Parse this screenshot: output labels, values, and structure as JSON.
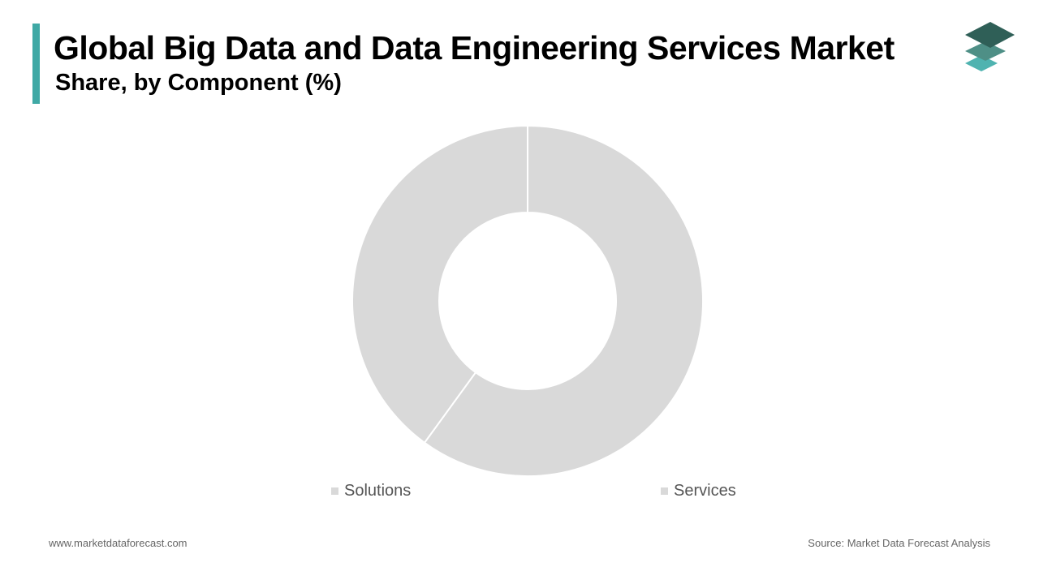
{
  "header": {
    "title": "Global Big Data and Data Engineering Services Market",
    "subtitle": "Share, by Component (%)"
  },
  "colors": {
    "accent": "#3fa9a5",
    "segment": "#d9d9d9",
    "segment_border": "#ffffff",
    "logo_dark": "#2f5f57",
    "logo_mid": "#4e8f86",
    "logo_light": "#4fb3b0"
  },
  "logo": {
    "icon": "stacked-layers-icon"
  },
  "chart_data": {
    "type": "pie",
    "variant": "donut",
    "categories": [
      "Solutions",
      "Services"
    ],
    "values": [
      40,
      60
    ],
    "colors": [
      "#d9d9d9",
      "#d9d9d9"
    ],
    "legend_position": "bottom"
  },
  "footer": {
    "website": "www.marketdataforecast.com",
    "source": "Source: Market Data Forecast Analysis"
  }
}
